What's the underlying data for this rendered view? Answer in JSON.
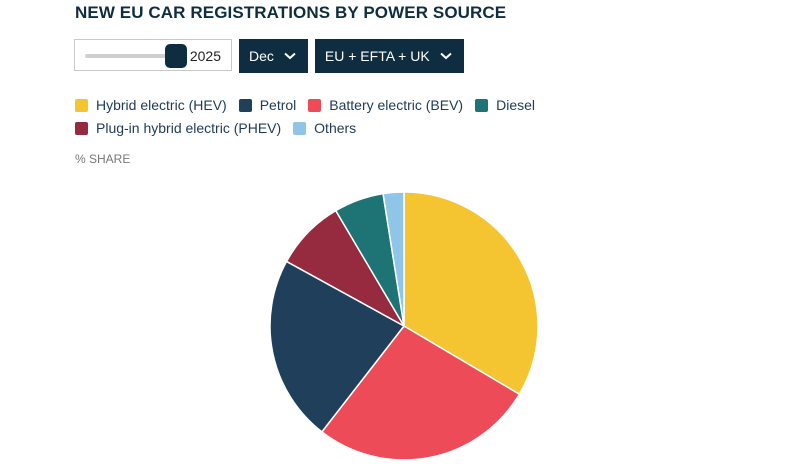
{
  "title": "NEW EU CAR REGISTRATIONS BY POWER SOURCE",
  "controls": {
    "year_value": "2025",
    "year_slider_level": 1.0,
    "month_label": "Dec",
    "region_label": "EU + EFTA + UK"
  },
  "unit_label": "% SHARE",
  "chart_data": {
    "type": "pie",
    "title": "NEW EU CAR REGISTRATIONS BY POWER SOURCE",
    "unit": "% SHARE",
    "categories": [
      "Hybrid electric (HEV)",
      "Battery electric (BEV)",
      "Petrol",
      "Plug-in hybrid electric (PHEV)",
      "Diesel",
      "Others"
    ],
    "values": [
      33.5,
      27.0,
      22.5,
      8.5,
      6.0,
      2.5
    ],
    "colors": [
      "#f5c431",
      "#ec4b57",
      "#1f3f5b",
      "#962b40",
      "#1e7474",
      "#8fc5e6"
    ],
    "legend": {
      "placement": "top-left",
      "rows": [
        [
          {
            "label": "Hybrid electric (HEV)",
            "color": "#f5c431"
          },
          {
            "label": "Petrol",
            "color": "#1f3f5b"
          },
          {
            "label": "Battery electric (BEV)",
            "color": "#ec4b57"
          },
          {
            "label": "Diesel",
            "color": "#1e7474"
          }
        ],
        [
          {
            "label": "Plug-in hybrid electric (PHEV)",
            "color": "#962b40"
          },
          {
            "label": "Others",
            "color": "#8fc5e6"
          }
        ]
      ]
    }
  }
}
